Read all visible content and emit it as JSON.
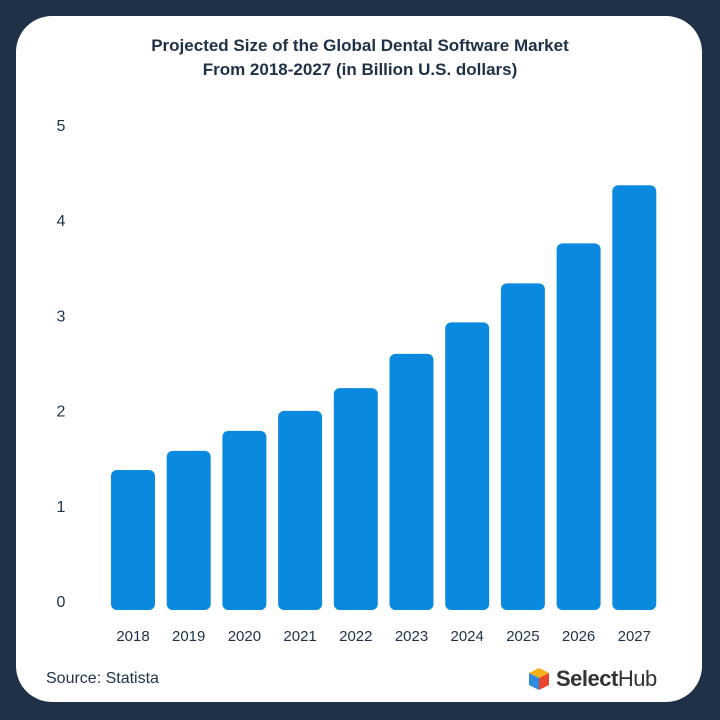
{
  "chart_data": {
    "type": "bar",
    "title": "Projected Size of the Global Dental Software Market",
    "subtitle": "From 2018-2027 (in Billion U.S. dollars)",
    "categories": [
      "2018",
      "2019",
      "2020",
      "2021",
      "2022",
      "2023",
      "2024",
      "2025",
      "2026",
      "2027"
    ],
    "values": [
      1.45,
      1.65,
      1.86,
      2.07,
      2.31,
      2.67,
      3.0,
      3.41,
      3.83,
      4.44
    ],
    "yticks": [
      "0",
      "1",
      "2",
      "3",
      "4",
      "5"
    ],
    "ylim": [
      0,
      5
    ],
    "xlabel": "",
    "ylabel": "",
    "grid": false,
    "bar_color": "#0a8ade"
  },
  "source": "Source: Statista",
  "logo": {
    "bold": "Select",
    "regular": "Hub"
  },
  "colors": {
    "background": "#1f3147",
    "card": "#ffffff",
    "text": "#1f3147"
  }
}
